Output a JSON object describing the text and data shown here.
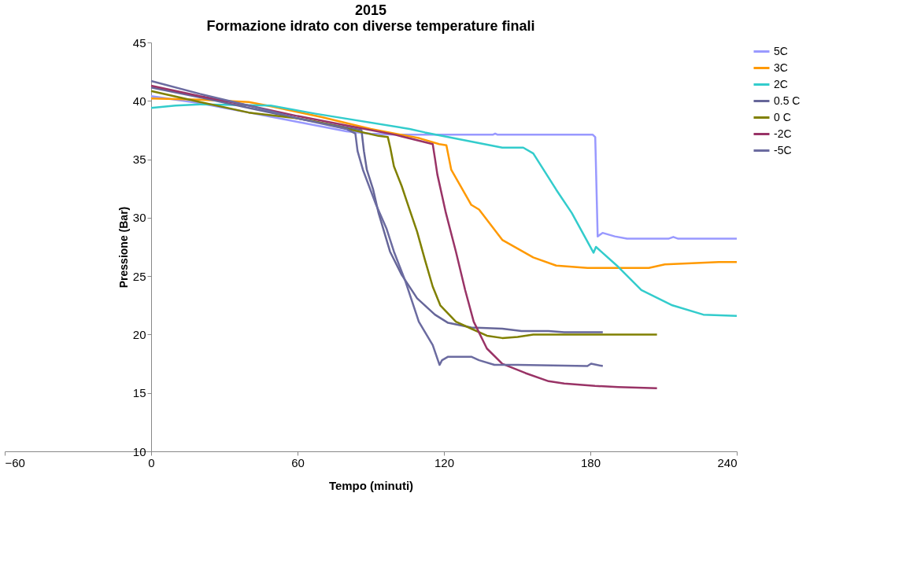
{
  "chart_data": {
    "type": "line",
    "title": [
      "2015",
      "Formazione idrato con diverse temperature finali"
    ],
    "xlabel": "Tempo (minuti)",
    "ylabel": "Pressione (Bar)",
    "xlim": [
      -60,
      240
    ],
    "xticks": [
      -60,
      0,
      60,
      120,
      180,
      240
    ],
    "ylim": [
      10,
      45
    ],
    "yticks": [
      10,
      15,
      20,
      25,
      30,
      35,
      40,
      45
    ],
    "grid": false,
    "legend": "right",
    "marker": "none",
    "line_style": "solid",
    "series": [
      {
        "name": "5C",
        "color": "#9999ff",
        "x": [
          0,
          10,
          20,
          30,
          40,
          50,
          60,
          70,
          80,
          90,
          100,
          140,
          141,
          142,
          181,
          182,
          183,
          185,
          190,
          195,
          212,
          214,
          216,
          240
        ],
        "values": [
          40.4,
          40.1,
          39.8,
          39.4,
          39.0,
          38.6,
          38.2,
          37.8,
          37.4,
          37.2,
          37.1,
          37.1,
          37.2,
          37.1,
          37.1,
          36.9,
          28.4,
          28.7,
          28.4,
          28.2,
          28.2,
          28.35,
          28.2,
          28.2
        ]
      },
      {
        "name": "3C",
        "color": "#ff9900",
        "x": [
          0,
          20,
          40,
          50,
          70,
          90,
          110,
          118,
          121,
          123,
          131.2,
          134.4,
          143.9,
          156.6,
          166,
          178.8,
          204,
          210.5,
          232.6,
          240
        ],
        "values": [
          40.2,
          40.1,
          39.9,
          39.5,
          38.6,
          37.6,
          36.8,
          36.3,
          36.2,
          34.1,
          31.1,
          30.7,
          28.1,
          26.6,
          25.9,
          25.7,
          25.7,
          26.0,
          26.2,
          26.2
        ]
      },
      {
        "name": "2C",
        "color": "#33cccc",
        "x": [
          0,
          10,
          20,
          49,
          67.4,
          105.9,
          112.2,
          143.9,
          152.5,
          156.6,
          166,
          172.4,
          181.3,
          182.3,
          191.4,
          200.9,
          213.6,
          226.3,
          240
        ],
        "values": [
          39.4,
          39.6,
          39.7,
          39.6,
          38.9,
          37.6,
          37.3,
          36.0,
          36.0,
          35.5,
          32.4,
          30.4,
          27.0,
          27.5,
          25.8,
          23.8,
          22.5,
          21.7,
          21.6
        ]
      },
      {
        "name": "0.5 C",
        "color": "#666699",
        "x": [
          0,
          20,
          40,
          60,
          86.2,
          87.2,
          88.4,
          91,
          93.2,
          97.9,
          102.7,
          109,
          116.3,
          121.7,
          131.2,
          143.9,
          151.8,
          162.9,
          169.3,
          185.1
        ],
        "values": [
          41.15,
          40.3,
          39.4,
          38.5,
          37.5,
          35.7,
          34.1,
          32.4,
          30.4,
          27.1,
          25.1,
          23.1,
          21.7,
          21.0,
          20.6,
          20.5,
          20.3,
          20.3,
          20.2,
          20.2
        ]
      },
      {
        "name": "0 C",
        "color": "#808000",
        "x": [
          0,
          20,
          40,
          60,
          67.8,
          93.2,
          97,
          98,
          99.5,
          102.7,
          105.9,
          109,
          112.2,
          115.4,
          118.5,
          124.9,
          131.2,
          137.6,
          143.9,
          150.2,
          156.6,
          169.3,
          188.3,
          207.3
        ],
        "values": [
          40.85,
          39.9,
          39.0,
          38.5,
          38.2,
          37.0,
          36.9,
          36.0,
          34.4,
          32.7,
          30.7,
          28.8,
          26.4,
          24.1,
          22.5,
          21.1,
          20.5,
          19.9,
          19.7,
          19.8,
          20.0,
          20.0,
          20.0,
          20.0
        ]
      },
      {
        "name": "-2C",
        "color": "#993366",
        "x": [
          0,
          20,
          40,
          60,
          80,
          100,
          115.4,
          116.3,
          117.3,
          120.8,
          124.9,
          128.7,
          132.2,
          137.6,
          143.9,
          153.4,
          162.9,
          169.3,
          181.9,
          191.4,
          207.3
        ],
        "values": [
          41.3,
          40.4,
          39.6,
          38.7,
          37.9,
          37.1,
          36.3,
          35.1,
          33.7,
          30.4,
          27.1,
          23.8,
          21.1,
          18.8,
          17.5,
          16.7,
          16.0,
          15.8,
          15.6,
          15.5,
          15.4
        ]
      },
      {
        "name": "-5C",
        "color": "#6b6ba0",
        "x": [
          0,
          20,
          40,
          60,
          80,
          83.7,
          84.6,
          86.8,
          92.2,
          96.4,
          99.5,
          104.3,
          109.7,
          115.4,
          118.2,
          119.2,
          121.7,
          131.2,
          134.4,
          140.7,
          150.2,
          178.8,
          180.3,
          185.1
        ],
        "values": [
          41.7,
          40.6,
          39.6,
          38.5,
          37.6,
          37.2,
          35.7,
          34.1,
          31.1,
          29.1,
          27.1,
          24.5,
          21.1,
          19.1,
          17.4,
          17.8,
          18.1,
          18.1,
          17.8,
          17.4,
          17.4,
          17.3,
          17.5,
          17.3
        ]
      }
    ]
  }
}
